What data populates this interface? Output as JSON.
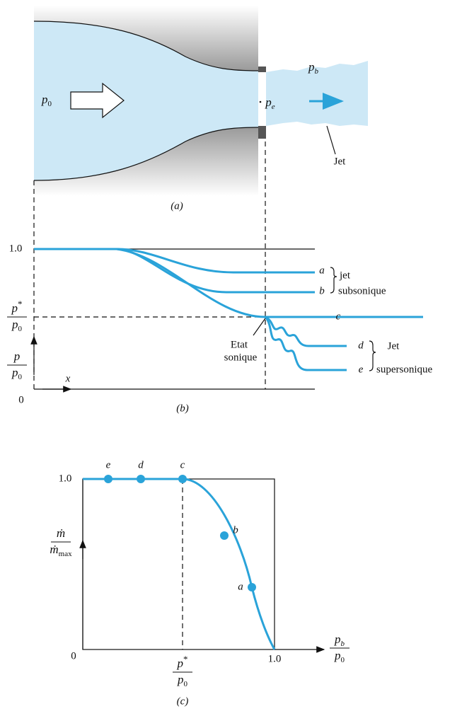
{
  "panel_a": {
    "caption": "(a)",
    "p0": {
      "base": "p",
      "sub": "0"
    },
    "pe": {
      "base": "p",
      "sub": "e"
    },
    "pb": {
      "base": "p",
      "sub": "b"
    },
    "jet": "Jet"
  },
  "panel_b": {
    "caption": "(b)",
    "y_top": "1.0",
    "y_origin": "0",
    "x_axis": "x",
    "p_star_ratio": {
      "num": {
        "base": "p",
        "sup": "*"
      },
      "den": {
        "base": "p",
        "sub": "0"
      }
    },
    "y_axis": {
      "num": {
        "base": "p"
      },
      "den": {
        "base": "p",
        "sub": "0"
      }
    },
    "curves": [
      "a",
      "b",
      "c",
      "d",
      "e"
    ],
    "subsonic": [
      "jet",
      "subsonique"
    ],
    "sonic": [
      "Etat",
      "sonique"
    ],
    "supersonic": [
      "Jet",
      "supersonique"
    ]
  },
  "panel_c": {
    "caption": "(c)",
    "y_top": "1.0",
    "origin": "0",
    "x_end": "1.0",
    "points": [
      "e",
      "d",
      "c",
      "b",
      "a"
    ],
    "y_axis": {
      "num": {
        "base": "ṁ"
      },
      "den": {
        "base": "ṁ",
        "sub": "max"
      }
    },
    "x_axis": {
      "num": {
        "base": "p",
        "sub": "b"
      },
      "den": {
        "base": "p",
        "sub": "0"
      }
    },
    "p_star_ratio": {
      "num": {
        "base": "p",
        "sup": "*"
      },
      "den": {
        "base": "p",
        "sub": "0"
      }
    }
  }
}
